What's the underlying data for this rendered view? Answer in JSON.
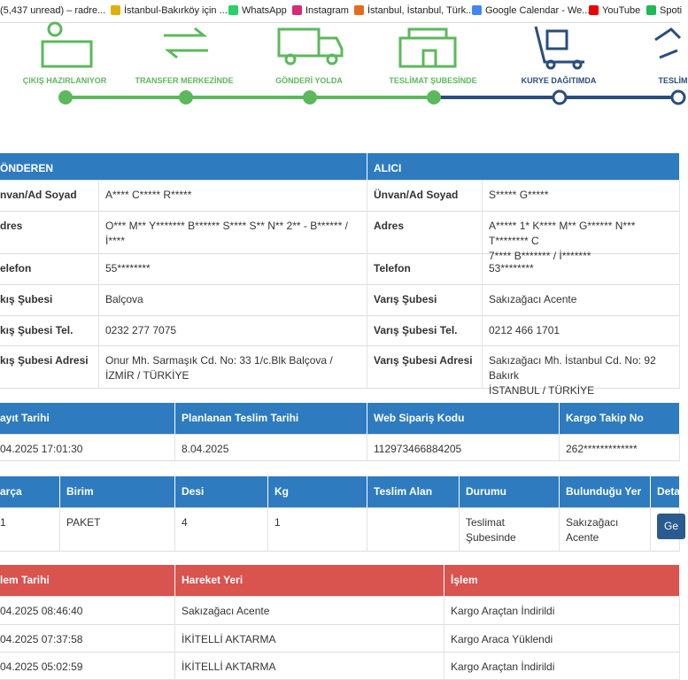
{
  "bookmarks": [
    "(5,437 unread) – radre...",
    "İstanbul-Bakırköy için ...",
    "WhatsApp",
    "Instagram",
    "İstanbul, İstanbul, Türk...",
    "Google Calendar - We...",
    "YouTube",
    "Spoti"
  ],
  "steps": [
    "ÇIKIŞ HAZIRLANIYOR",
    "TRANSFER MERKEZİNDE",
    "GÖNDERİ YOLDA",
    "TESLİMAT ŞUBESİNDE",
    "KURYE DAĞITIMDA",
    "TESLİM"
  ],
  "party_table": {
    "header": [
      "ÖNDEREN",
      "ALICI"
    ],
    "rows": [
      [
        "nvan/Ad Soyad",
        "A**** C***** R*****",
        "Ünvan/Ad Soyad",
        "S***** G*****"
      ],
      [
        "dres",
        "O*** M** Y******* B****** S**** S** N** 2** - B****** / İ****",
        "Adres",
        "A***** 1* K**** M** G****** N*** T******** C\n7**** B******* / İ*******"
      ],
      [
        "elefon",
        "55********",
        "Telefon",
        "53********"
      ],
      [
        "kış Şubesi",
        "Balçova",
        "Varış Şubesi",
        "Sakızağacı Acente"
      ],
      [
        "kış Şubesi Tel.",
        "0232 277 7075",
        "Varış Şubesi Tel.",
        "0212 466 1701"
      ],
      [
        "kış Şubesi Adresi",
        "Onur Mh. Sarmaşık Cd. No: 33 1/c.Blk Balçova / İZMİR / TÜRKİYE",
        "Varış Şubesi Adresi",
        "Sakızağacı Mh. İstanbul Cd. No: 92 Bakırk\nİSTANBUL / TÜRKİYE"
      ]
    ]
  },
  "info_table": {
    "header": [
      "ayıt Tarihi",
      "Planlanan Teslim Tarihi",
      "Web Sipariş Kodu",
      "Kargo Takip No"
    ],
    "rows": [
      [
        "04.2025 17:01:30",
        "8.04.2025",
        "112973466884205",
        "262*************"
      ]
    ]
  },
  "piece_table": {
    "header": [
      "arça",
      "Birim",
      "Desi",
      "Kg",
      "Teslim Alan",
      "Durumu",
      "Bulunduğu Yer",
      "Deta"
    ],
    "rows": [
      [
        "1",
        "PAKET",
        "4",
        "1",
        null,
        "Teslimat\nŞubesinde",
        "Sakızağacı\nAcente",
        "Ge"
      ]
    ]
  },
  "movement_table": {
    "header": [
      "lem Tarihi",
      "Hareket Yeri",
      "İşlem"
    ],
    "rows": [
      [
        "04.2025 08:46:40",
        "Sakızağacı Acente",
        "Kargo Araçtan İndirildi"
      ],
      [
        "04.2025 07:37:58",
        "İKİTELLİ AKTARMA",
        "Kargo Araca Yüklendi"
      ],
      [
        "04.2025 05:02:59",
        "İKİTELLİ AKTARMA",
        "Kargo Araçtan İndirildi"
      ]
    ]
  }
}
